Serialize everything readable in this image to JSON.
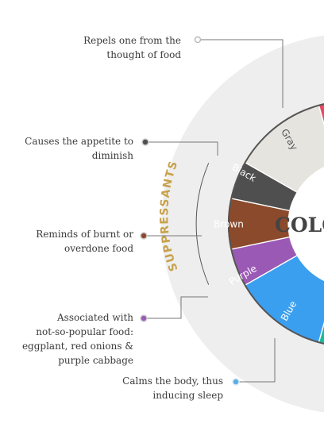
{
  "wheel": {
    "title": "COLO",
    "group_label": "SUPPRESSANTS",
    "colors": {
      "outer_band": "#eeeeee",
      "ring_border": "#555555",
      "gold": "#c8a24a",
      "title": "#444444",
      "leader": "#777777"
    },
    "segments": [
      {
        "key": "gray",
        "label": "Gray",
        "color": "#e6e4df",
        "text_color": "#555555"
      },
      {
        "key": "black",
        "label": "Black",
        "color": "#4f4f4f",
        "text_color": "#ffffff"
      },
      {
        "key": "brown",
        "label": "Brown",
        "color": "#8b4a2b",
        "text_color": "#ffffff"
      },
      {
        "key": "purple",
        "label": "Purple",
        "color": "#9b59b6",
        "text_color": "#ffffff"
      },
      {
        "key": "blue",
        "label": "Blue",
        "color": "#3b9ff0",
        "text_color": "#ffffff"
      }
    ],
    "edge_colors": {
      "red": "#e84a5f",
      "teal": "#1abc9c"
    }
  },
  "notes": {
    "gray": [
      "Repels one from the",
      "thought of food"
    ],
    "black": [
      "Causes the appetite to",
      "diminish"
    ],
    "brown": [
      "Reminds of burnt or",
      "overdone food"
    ],
    "purple": [
      "Associated with",
      "not-so-popular food:",
      "eggplant, red onions &",
      "purple cabbage"
    ],
    "blue": [
      "Calms the body, thus",
      "inducing sleep"
    ]
  },
  "marker_colors": {
    "gray": "#bbbbbb",
    "black": "#4f4f4f",
    "brown": "#8b4a2b",
    "purple": "#9b59b6",
    "blue": "#5dade2"
  }
}
